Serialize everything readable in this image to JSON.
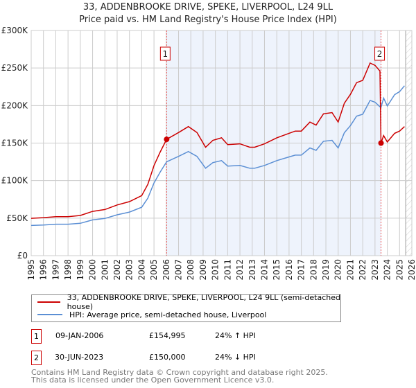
{
  "title_line1": "33, ADDENBROOKE DRIVE, SPEKE, LIVERPOOL, L24 9LL",
  "title_line2": "Price paid vs. HM Land Registry's House Price Index (HPI)",
  "chart_data": {
    "type": "line",
    "title": "33, ADDENBROOKE DRIVE, SPEKE, LIVERPOOL, L24 9LL — Price paid vs. HM Land Registry's House Price Index (HPI)",
    "xlim": [
      1995,
      2026
    ],
    "ylim": [
      0,
      300000
    ],
    "x_ticks": [
      "1995",
      "1996",
      "1997",
      "1998",
      "1999",
      "2000",
      "2001",
      "2002",
      "2003",
      "2004",
      "2005",
      "2006",
      "2007",
      "2008",
      "2009",
      "2010",
      "2011",
      "2012",
      "2013",
      "2014",
      "2015",
      "2016",
      "2017",
      "2018",
      "2019",
      "2020",
      "2021",
      "2022",
      "2023",
      "2024",
      "2025",
      "2026"
    ],
    "y_ticks": [
      {
        "v": 0,
        "label": "£0"
      },
      {
        "v": 50000,
        "label": "£50K"
      },
      {
        "v": 100000,
        "label": "£100K"
      },
      {
        "v": 150000,
        "label": "£150K"
      },
      {
        "v": 200000,
        "label": "£200K"
      },
      {
        "v": 250000,
        "label": "£250K"
      },
      {
        "v": 300000,
        "label": "£300K"
      }
    ],
    "grid": true,
    "colors": {
      "property": "#cc0000",
      "hpi": "#5b8fd4",
      "shade": "#eef3fc"
    },
    "series": [
      {
        "name": "33, ADDENBROOKE DRIVE, SPEKE, LIVERPOOL, L24 9LL (semi-detached house)",
        "x": [
          1995,
          1996,
          1997,
          1998,
          1999,
          2000,
          2001,
          2002,
          2003,
          2004,
          2004.5,
          2005,
          2005.5,
          2006.03,
          2007,
          2007.8,
          2008.5,
          2009.2,
          2009.8,
          2010.5,
          2011,
          2012,
          2012.8,
          2013.2,
          2014,
          2015,
          2016,
          2016.5,
          2017,
          2017.7,
          2018.2,
          2018.8,
          2019.5,
          2020,
          2020.5,
          2021,
          2021.5,
          2022,
          2022.6,
          2023,
          2023.4,
          2023.49,
          2023.7,
          2024,
          2024.6,
          2025,
          2025.4
        ],
        "values": [
          49800,
          50700,
          52000,
          52000,
          53500,
          59000,
          61500,
          67600,
          72000,
          80000,
          95000,
          120000,
          138000,
          154995,
          164000,
          172000,
          164000,
          144500,
          153700,
          157000,
          148000,
          149000,
          144500,
          144500,
          149000,
          157000,
          163000,
          166000,
          166000,
          178000,
          174000,
          189000,
          190600,
          178000,
          203000,
          215000,
          230500,
          233600,
          256600,
          253600,
          246000,
          150000,
          160000,
          151500,
          163000,
          166000,
          172000
        ]
      },
      {
        "name": "HPI: Average price, semi-detached house, Liverpool",
        "x": [
          1995,
          1996,
          1997,
          1998,
          1999,
          2000,
          2001,
          2002,
          2003,
          2004,
          2004.5,
          2005,
          2005.5,
          2006.03,
          2007,
          2007.8,
          2008.5,
          2009.2,
          2009.8,
          2010.5,
          2011,
          2012,
          2012.8,
          2013.2,
          2014,
          2015,
          2016,
          2016.5,
          2017,
          2017.7,
          2018.2,
          2018.8,
          2019.5,
          2020,
          2020.5,
          2021,
          2021.5,
          2022,
          2022.6,
          2023,
          2023.4,
          2023.49,
          2023.7,
          2024,
          2024.6,
          2025,
          2025.4
        ],
        "values": [
          40200,
          40900,
          41900,
          41900,
          43100,
          47600,
          49600,
          54500,
          58100,
          64500,
          76600,
          96800,
          111300,
          125000,
          132300,
          138700,
          132300,
          116500,
          124000,
          126600,
          119400,
          120200,
          116500,
          116500,
          120200,
          126600,
          131500,
          133900,
          133900,
          143500,
          140300,
          152400,
          153700,
          143500,
          163700,
          173400,
          185900,
          188400,
          206900,
          204500,
          198400,
          197400,
          210000,
          199400,
          214500,
          218500,
          226300
        ]
      }
    ],
    "sales": [
      {
        "id": "1",
        "x": 2006.03,
        "value": 154995
      },
      {
        "id": "2",
        "x": 2023.49,
        "value": 150000
      }
    ]
  },
  "legend": {
    "property_label": "33, ADDENBROOKE DRIVE, SPEKE, LIVERPOOL, L24 9LL (semi-detached house)",
    "hpi_label": "HPI: Average price, semi-detached house, Liverpool"
  },
  "transactions": [
    {
      "id": "1",
      "date": "09-JAN-2006",
      "price": "£154,995",
      "delta": "24% ↑ HPI"
    },
    {
      "id": "2",
      "date": "30-JUN-2023",
      "price": "£150,000",
      "delta": "24% ↓ HPI"
    }
  ],
  "footer_line1": "Contains HM Land Registry data © Crown copyright and database right 2025.",
  "footer_line2": "This data is licensed under the Open Government Licence v3.0."
}
